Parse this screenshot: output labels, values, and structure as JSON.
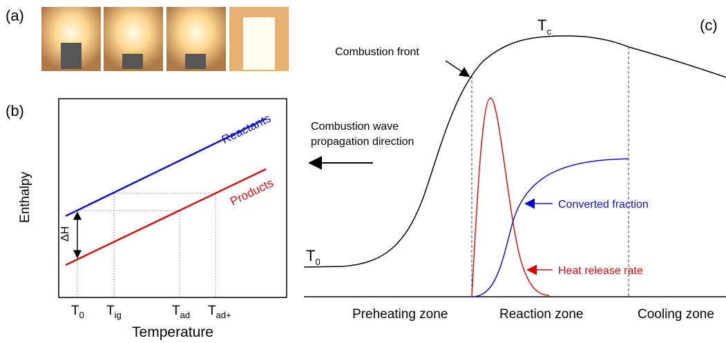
{
  "panel_a": {
    "label": "(a)"
  },
  "panel_b": {
    "label": "(b)",
    "y_axis_label": "Enthalpy",
    "x_axis_label": "Temperature",
    "line_labels": [
      "Reactants",
      "Products"
    ],
    "delta_label": "ΔH",
    "ticks": [
      {
        "base": "T",
        "sub": "0"
      },
      {
        "base": "T",
        "sub": "ig"
      },
      {
        "base": "T",
        "sub": "ad"
      },
      {
        "base": "T",
        "sub": "ad+"
      }
    ]
  },
  "panel_c": {
    "label": "(c)",
    "peak_label": {
      "base": "T",
      "sub": "c"
    },
    "start_label": {
      "base": "T",
      "sub": "0"
    },
    "front_label": "Combustion front",
    "direction_label": [
      "Combustion wave",
      "propagation direction"
    ],
    "converted_label": "Converted fraction",
    "heat_label": "Heat release rate",
    "zones": [
      "Preheating zone",
      "Reaction zone",
      "Cooling zone"
    ]
  }
}
